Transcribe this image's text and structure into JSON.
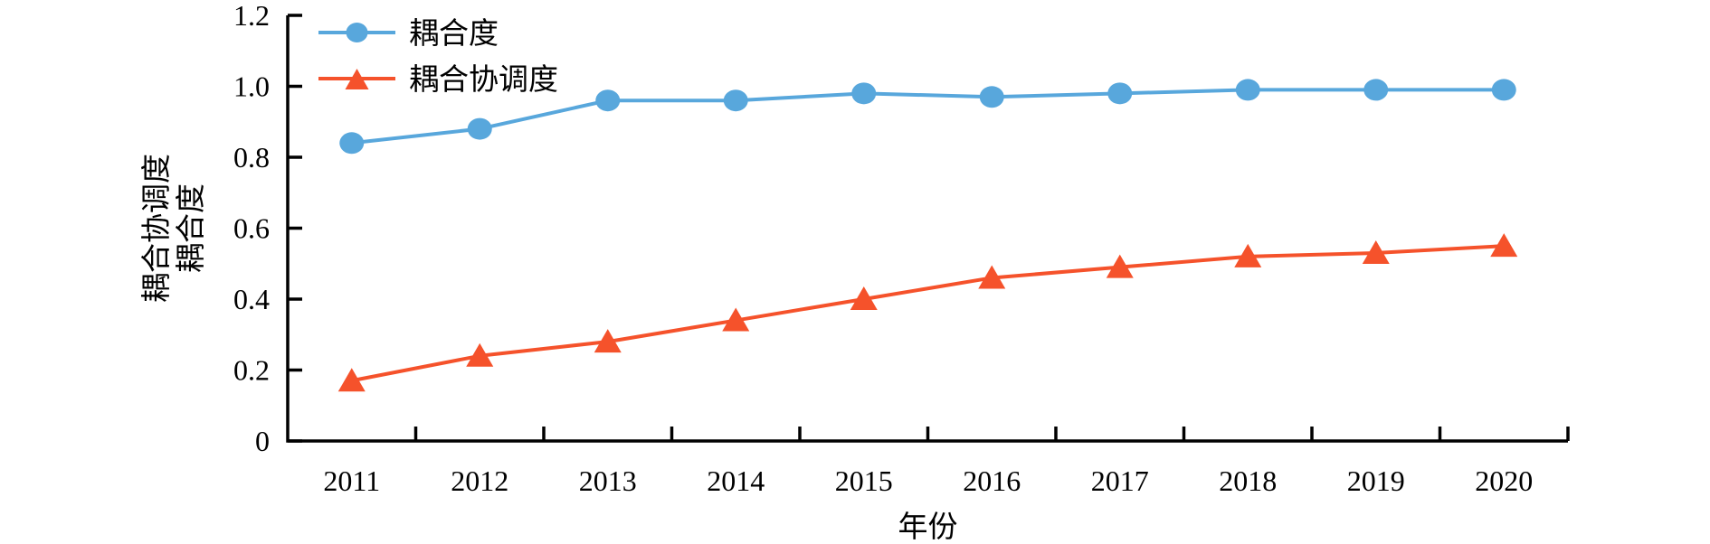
{
  "figure": {
    "background": "#ffffff"
  },
  "chart_data": {
    "type": "line",
    "title": "",
    "xlabel": "年份",
    "ylabel_lines": [
      "耦合协调度",
      "耦合度"
    ],
    "categories": [
      "2011",
      "2012",
      "2013",
      "2014",
      "2015",
      "2016",
      "2017",
      "2018",
      "2019",
      "2020"
    ],
    "series": [
      {
        "name": "耦合度",
        "marker": "circle",
        "color": "#58A7DC",
        "values": [
          0.84,
          0.88,
          0.96,
          0.96,
          0.98,
          0.97,
          0.98,
          0.99,
          0.99,
          0.99
        ]
      },
      {
        "name": "耦合协调度",
        "marker": "triangle",
        "color": "#F5522B",
        "values": [
          0.17,
          0.24,
          0.28,
          0.34,
          0.4,
          0.46,
          0.49,
          0.52,
          0.53,
          0.55
        ]
      }
    ],
    "ylim": [
      0,
      1.2
    ],
    "y_ticks": [
      "0",
      "0.2",
      "0.4",
      "0.6",
      "0.8",
      "1.0",
      "1.2"
    ],
    "grid": false,
    "legend_position": "upper-left-inside",
    "axis_color": "#000000",
    "text_color": "#000000"
  }
}
